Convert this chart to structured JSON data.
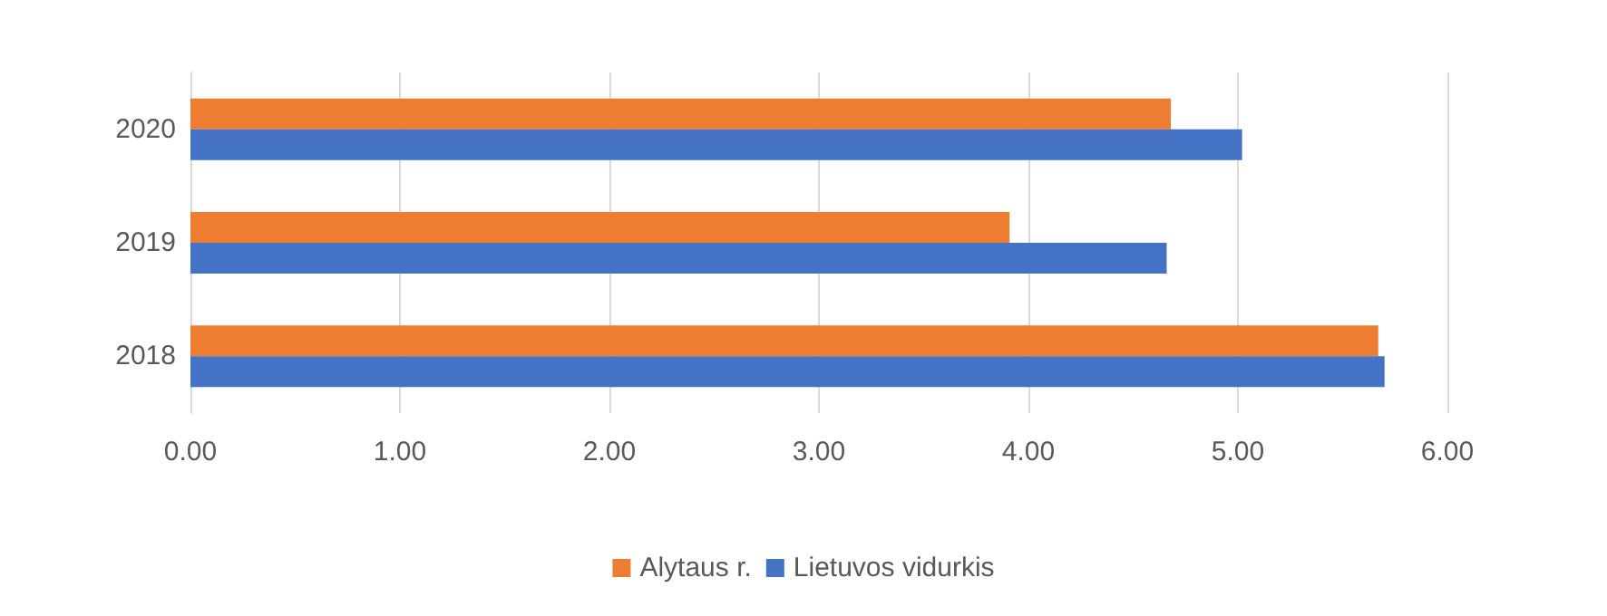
{
  "chart_data": {
    "type": "bar",
    "orientation": "horizontal",
    "categories": [
      "2020",
      "2019",
      "2018"
    ],
    "series": [
      {
        "name": "Alytaus r.",
        "color": "#ed7d31",
        "values": [
          4.68,
          3.91,
          5.67
        ]
      },
      {
        "name": "Lietuvos vidurkis",
        "color": "#4472c4",
        "values": [
          5.02,
          4.66,
          5.7
        ]
      }
    ],
    "xlim": [
      0,
      6
    ],
    "xticks": [
      {
        "value": 0,
        "label": "0.00"
      },
      {
        "value": 1,
        "label": "1.00"
      },
      {
        "value": 2,
        "label": "2.00"
      },
      {
        "value": 3,
        "label": "3.00"
      },
      {
        "value": 4,
        "label": "4.00"
      },
      {
        "value": 5,
        "label": "5.00"
      },
      {
        "value": 6,
        "label": "6.00"
      }
    ],
    "grid": "x",
    "legend": "bottom"
  }
}
